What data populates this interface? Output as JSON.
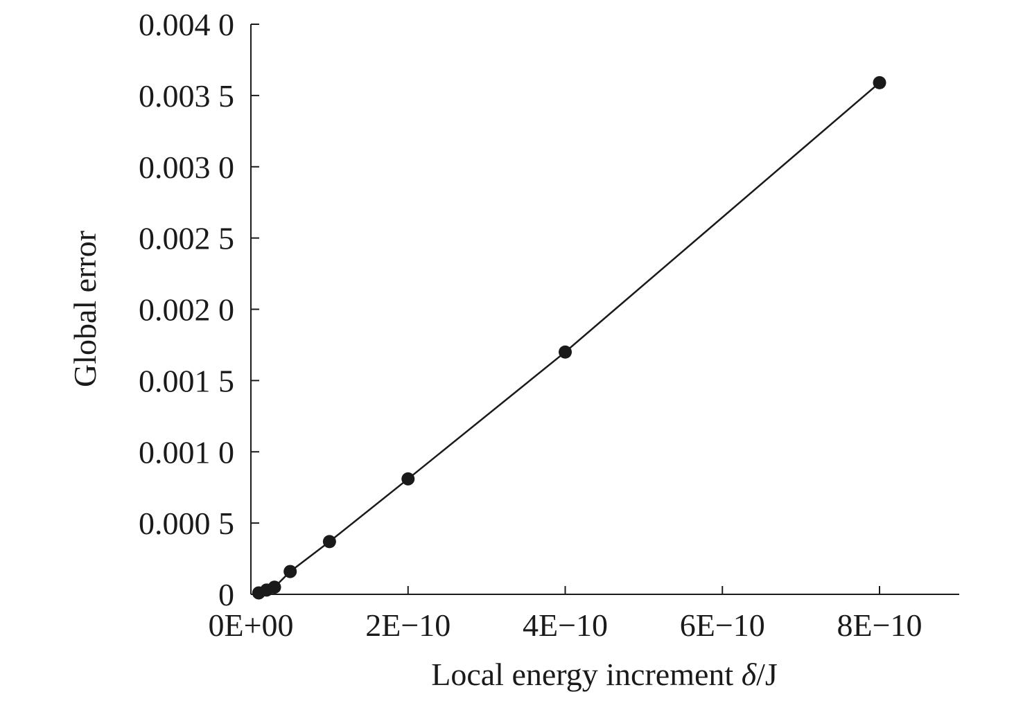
{
  "chart_data": {
    "type": "scatter",
    "title": "",
    "xlabel": "Local energy increment ",
    "xlabel_symbol": "δ",
    "xlabel_unit": "/J",
    "ylabel": "Global error",
    "xlim": [
      0,
      9e-10
    ],
    "ylim": [
      0,
      0.004
    ],
    "x_ticks": [
      0,
      2e-10,
      4e-10,
      6e-10,
      8e-10
    ],
    "x_tick_labels": [
      "0E+00",
      "2E−10",
      "4E−10",
      "6E−10",
      "8E−10"
    ],
    "y_ticks": [
      0,
      0.0005,
      0.001,
      0.0015,
      0.002,
      0.0025,
      0.003,
      0.0035,
      0.004
    ],
    "y_tick_labels": [
      "0",
      "0.000 5",
      "0.001 0",
      "0.001 5",
      "0.002 0",
      "0.002 5",
      "0.003 0",
      "0.003 5",
      "0.004 0"
    ],
    "grid": false,
    "legend": "none",
    "marker": "filled-circle",
    "connected_by_line": true,
    "color": "#1a1a1a",
    "series": [
      {
        "x": [
          1e-11,
          2e-11,
          3e-11,
          5e-11,
          1e-10,
          2e-10,
          4e-10,
          8e-10
        ],
        "y": [
          1e-05,
          3e-05,
          5e-05,
          0.00016,
          0.00037,
          0.00081,
          0.0017,
          0.00359
        ]
      }
    ]
  }
}
